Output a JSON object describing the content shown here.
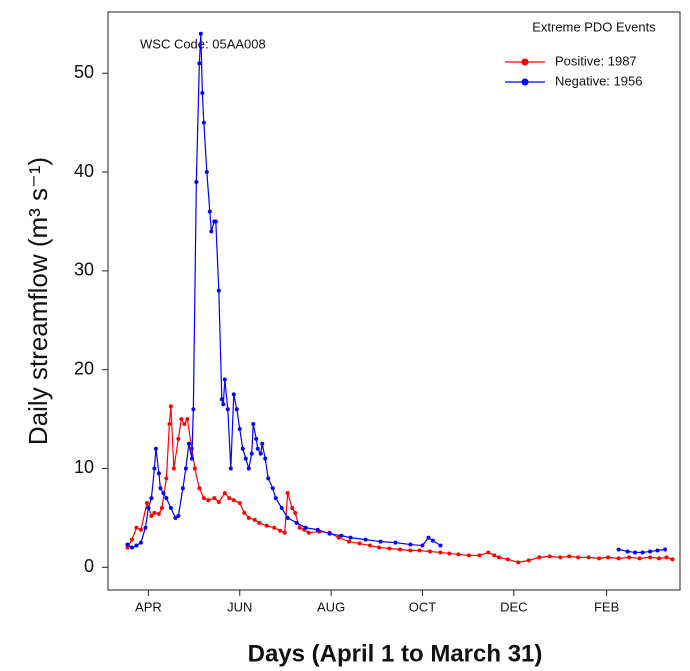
{
  "chart_data": {
    "type": "line",
    "annotation": "WSC Code: 05AA008",
    "legend_title": "Extreme PDO Events",
    "legend_position": "upper right",
    "x_label": "Days (April 1 to March 31)",
    "y_label": "Daily streamflow (m³ s⁻¹)",
    "xlim": [
      -12,
      370
    ],
    "xticks": [
      {
        "value": 15,
        "label": "APR"
      },
      {
        "value": 76,
        "label": "JUN"
      },
      {
        "value": 137,
        "label": "AUG"
      },
      {
        "value": 198,
        "label": "OCT"
      },
      {
        "value": 259,
        "label": "DEC"
      },
      {
        "value": 321,
        "label": "FEB"
      }
    ],
    "ylim": [
      -2.3,
      56.2
    ],
    "yticks": [
      0,
      10,
      20,
      30,
      40,
      50
    ],
    "series": [
      {
        "name": "Positive: 1987",
        "color": "#ff0000",
        "x": [
          1,
          4,
          7,
          10,
          14,
          17,
          19,
          22,
          24,
          27,
          29,
          30,
          32,
          35,
          37,
          39,
          41,
          44,
          46,
          49,
          52,
          55,
          59,
          62,
          66,
          69,
          72,
          76,
          79,
          82,
          86,
          89,
          94,
          99,
          103,
          106,
          108,
          111,
          113,
          116,
          119,
          122,
          129,
          136,
          142,
          149,
          156,
          163,
          169,
          176,
          183,
          190,
          196,
          203,
          210,
          216,
          222,
          229,
          236,
          242,
          246,
          249,
          255,
          262,
          269,
          276,
          283,
          290,
          296,
          302,
          309,
          316,
          322,
          329,
          336,
          343,
          350,
          356,
          361,
          365
        ],
        "values": [
          2,
          2.8,
          4,
          3.8,
          6.5,
          5.2,
          5.5,
          5.4,
          6,
          9,
          14.5,
          16.3,
          10,
          13,
          15,
          14.5,
          15,
          12,
          10,
          8,
          7,
          6.8,
          7,
          6.6,
          7.5,
          7,
          6.8,
          6.5,
          5.5,
          5,
          4.8,
          4.5,
          4.2,
          4,
          3.7,
          3.5,
          7.5,
          6,
          5.5,
          4,
          3.8,
          3.5,
          3.6,
          3.5,
          3,
          2.6,
          2.4,
          2.2,
          2,
          1.9,
          1.8,
          1.7,
          1.7,
          1.6,
          1.5,
          1.4,
          1.3,
          1.2,
          1.2,
          1.5,
          1.2,
          1,
          0.8,
          0.5,
          0.7,
          1,
          1.1,
          1,
          1.1,
          1,
          1,
          0.9,
          1,
          0.9,
          1,
          0.9,
          1,
          0.9,
          1,
          0.8
        ]
      },
      {
        "name": "Negative: 1956",
        "color": "#0000ff",
        "x": [
          1,
          4,
          7,
          10,
          13,
          15,
          17,
          19,
          20,
          22,
          23,
          25,
          27,
          30,
          33,
          35,
          38,
          40,
          42,
          44,
          45,
          47,
          49,
          50,
          51,
          52,
          54,
          56,
          57,
          59,
          60,
          62,
          64,
          65,
          66,
          68,
          70,
          72,
          74,
          76,
          78,
          80,
          82,
          84,
          85,
          87,
          88,
          90,
          91,
          93,
          95,
          98,
          100,
          104,
          108,
          114,
          120,
          128,
          136,
          144,
          150,
          160,
          170,
          180,
          190,
          198,
          202,
          205,
          210,
          270,
          329,
          335,
          340,
          345,
          350,
          355,
          360
        ],
        "values": [
          2.3,
          2,
          2.2,
          2.5,
          4,
          6,
          7,
          10,
          12,
          9.5,
          8,
          7.5,
          7,
          6,
          5,
          5.2,
          8,
          10,
          12.5,
          11,
          16,
          39,
          51,
          54,
          48,
          45,
          40,
          36,
          34,
          35,
          35,
          28,
          17,
          16.5,
          19,
          16,
          10,
          17.5,
          16,
          14,
          12,
          11,
          10,
          11.5,
          14.5,
          13,
          12,
          11.5,
          12.5,
          11,
          9,
          8,
          7,
          6,
          5,
          4.5,
          4,
          3.8,
          3.4,
          3.2,
          3,
          2.8,
          2.6,
          2.5,
          2.3,
          2.2,
          3,
          2.7,
          2.2,
          null,
          1.8,
          1.6,
          1.5,
          1.5,
          1.6,
          1.7,
          1.8
        ]
      }
    ]
  }
}
